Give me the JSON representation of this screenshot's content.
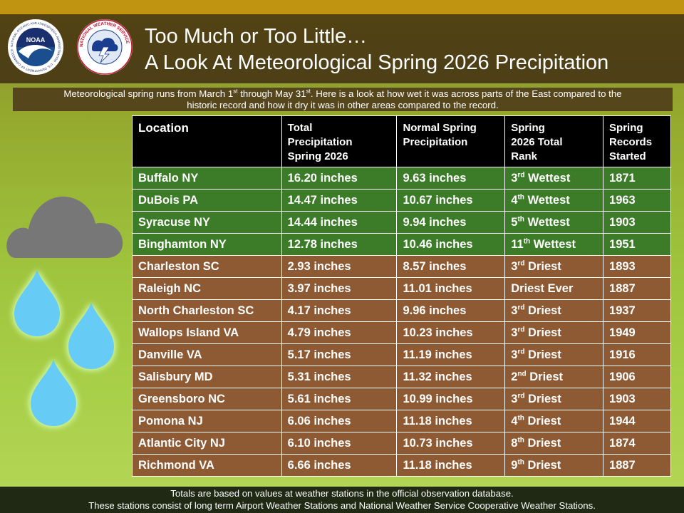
{
  "header": {
    "title_line1": "Too Much or Too Little…",
    "title_line2": "A Look At Meteorological Spring 2026 Precipitation",
    "logo_noaa": "NOAA",
    "logo_noaa_ring": "NATIONAL OCEANIC AND ATMOSPHERIC ADMINISTRATION · U.S. DEPARTMENT OF COMMERCE",
    "logo_nws_ring": "NATIONAL WEATHER SERVICE",
    "colors": {
      "top_bar": "#c09410",
      "band": "#4d3f17"
    }
  },
  "subtitle": {
    "p1": "Meteorological spring runs from March 1",
    "sup1": "st",
    "p2": " through May 31",
    "sup2": "st",
    "p3": ". Here is a look at how wet it was across parts of the East compared to the",
    "line2": "historic record and how it dry it was in other areas compared to the record."
  },
  "table": {
    "headers": [
      "Location",
      "Total Precipitation Spring 2026",
      "Normal Spring Precipitation",
      "Spring 2026 Total Rank",
      "Spring Records Started"
    ],
    "header_lines": [
      [
        "Location"
      ],
      [
        "Total",
        "Precipitation",
        "Spring 2026"
      ],
      [
        "Normal Spring",
        "Precipitation"
      ],
      [
        "Spring",
        "2026 Total",
        "Rank"
      ],
      [
        "Spring",
        "Records",
        "Started"
      ]
    ],
    "rows": [
      {
        "type": "wet",
        "location": "Buffalo NY",
        "total": "16.20 inches",
        "normal": "9.63 inches",
        "rank_num": "3",
        "rank_sup": "rd",
        "rank_word": " Wettest",
        "started": "1871"
      },
      {
        "type": "wet",
        "location": "DuBois PA",
        "total": "14.47 inches",
        "normal": "10.67 inches",
        "rank_num": "4",
        "rank_sup": "th",
        "rank_word": " Wettest",
        "started": "1963"
      },
      {
        "type": "wet",
        "location": "Syracuse NY",
        "total": "14.44 inches",
        "normal": "9.94 inches",
        "rank_num": "5",
        "rank_sup": "th",
        "rank_word": " Wettest",
        "started": "1903"
      },
      {
        "type": "wet",
        "location": "Binghamton NY",
        "total": "12.78 inches",
        "normal": "10.46 inches",
        "rank_num": "11",
        "rank_sup": "th",
        "rank_word": " Wettest",
        "started": "1951"
      },
      {
        "type": "dry",
        "location": "Charleston SC",
        "total": "2.93 inches",
        "normal": "8.57 inches",
        "rank_num": "3",
        "rank_sup": "rd",
        "rank_word": " Driest",
        "started": "1893"
      },
      {
        "type": "dry",
        "location": "Raleigh NC",
        "total": "3.97 inches",
        "normal": "11.01 inches",
        "rank_num": "",
        "rank_sup": "",
        "rank_word": "Driest Ever",
        "started": "1887"
      },
      {
        "type": "dry",
        "location": "North Charleston SC",
        "total": "4.17 inches",
        "normal": "9.96 inches",
        "rank_num": "3",
        "rank_sup": "rd",
        "rank_word": " Driest",
        "started": "1937"
      },
      {
        "type": "dry",
        "location": "Wallops Island VA",
        "total": "4.79 inches",
        "normal": "10.23 inches",
        "rank_num": "3",
        "rank_sup": "rd",
        "rank_word": " Driest",
        "started": "1949"
      },
      {
        "type": "dry",
        "location": "Danville VA",
        "total": "5.17 inches",
        "normal": "11.19 inches",
        "rank_num": "3",
        "rank_sup": "rd",
        "rank_word": " Driest",
        "started": "1916"
      },
      {
        "type": "dry",
        "location": "Salisbury MD",
        "total": "5.31 inches",
        "normal": "11.32 inches",
        "rank_num": "2",
        "rank_sup": "nd",
        "rank_word": " Driest",
        "started": "1906"
      },
      {
        "type": "dry",
        "location": "Greensboro NC",
        "total": "5.61 inches",
        "normal": "10.99 inches",
        "rank_num": "3",
        "rank_sup": "rd",
        "rank_word": " Driest",
        "started": "1903"
      },
      {
        "type": "dry",
        "location": "Pomona NJ",
        "total": "6.06 inches",
        "normal": "11.18 inches",
        "rank_num": "4",
        "rank_sup": "th",
        "rank_word": " Driest",
        "started": "1944"
      },
      {
        "type": "dry",
        "location": "Atlantic City NJ",
        "total": "6.10 inches",
        "normal": "10.73 inches",
        "rank_num": "8",
        "rank_sup": "th",
        "rank_word": " Driest",
        "started": "1874"
      },
      {
        "type": "dry",
        "location": "Richmond VA",
        "total": "6.66 inches",
        "normal": "11.18 inches",
        "rank_num": "9",
        "rank_sup": "th",
        "rank_word": " Driest",
        "started": "1887"
      }
    ],
    "colors": {
      "header_bg": "#000000",
      "wet_row": "#3c7b27",
      "dry_row": "#8e5a33"
    }
  },
  "footer": {
    "line1": "Totals are based on values at weather stations in the official observation database.",
    "line2": "These stations consist of long term Airport Weather Stations and National Weather Service Cooperative Weather Stations."
  },
  "decor": {
    "icons": [
      "cloud-icon",
      "raindrop-icon",
      "raindrop-icon",
      "raindrop-icon"
    ],
    "colors": {
      "cloud": "#777777",
      "drop": "#66ccf5",
      "drop_glow": "#d8ffb0"
    }
  }
}
